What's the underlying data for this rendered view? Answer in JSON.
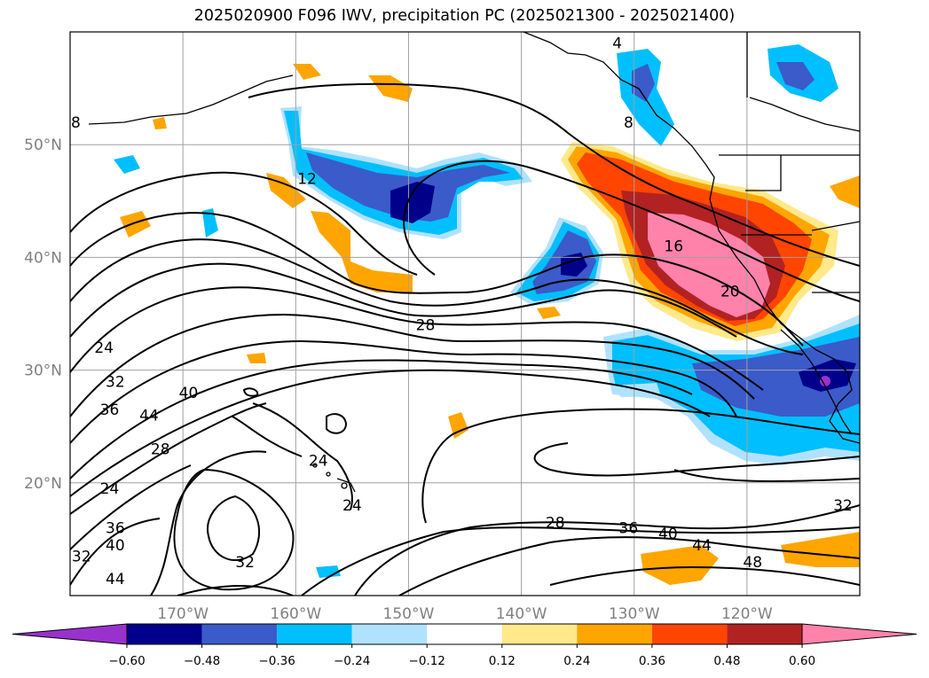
{
  "chart_data": {
    "type": "heatmap",
    "title": "2025020900 F096 IWV, precipitation PC (2025021300 - 2025021400)",
    "map": {
      "lon_range": [
        -180,
        -110
      ],
      "lat_range": [
        10,
        60
      ],
      "lon_ticks": [
        "170°W",
        "160°W",
        "150°W",
        "140°W",
        "130°W",
        "120°W"
      ],
      "lon_tick_values": [
        -170,
        -160,
        -150,
        -140,
        -130,
        -120
      ],
      "lat_ticks": [
        "50°N",
        "40°N",
        "30°N",
        "20°N"
      ],
      "lat_tick_values": [
        50,
        40,
        30,
        20
      ],
      "grid": true
    },
    "colorbar": {
      "tick_labels": [
        "−0.60",
        "−0.48",
        "−0.36",
        "−0.24",
        "−0.12",
        "0.12",
        "0.24",
        "0.36",
        "0.48",
        "0.60"
      ],
      "colors": [
        "#9932cc",
        "#00008b",
        "#3a5bc9",
        "#00bfff",
        "#b0e2ff",
        "#ffffff",
        "#ffe98a",
        "#ffa500",
        "#ff4500",
        "#b22222",
        "#ff82ab"
      ],
      "extend": "both"
    },
    "shaded_field": {
      "name": "precipitation PC",
      "regions": [
        {
          "level": 0.6,
          "lon": -127,
          "lat": 38,
          "note": "pink core off California"
        },
        {
          "level": 0.48,
          "lon": -126,
          "lat": 39
        },
        {
          "level": 0.36,
          "lon": -128,
          "lat": 42
        },
        {
          "level": 0.24,
          "lon": -130,
          "lat": 45
        },
        {
          "level": -0.48,
          "lon": -151,
          "lat": 44.5
        },
        {
          "level": -0.48,
          "lon": -135,
          "lat": 39
        },
        {
          "level": -0.48,
          "lon": -113,
          "lat": 29
        },
        {
          "level": -0.36,
          "lon": -119,
          "lat": 29.5
        },
        {
          "level": -0.24,
          "lon": -125,
          "lat": 31
        },
        {
          "level": -0.36,
          "lon": -125,
          "lat": 57
        },
        {
          "level": -0.36,
          "lon": -115,
          "lat": 56
        },
        {
          "level": 0.24,
          "lon": -154,
          "lat": 40
        },
        {
          "level": 0.24,
          "lon": -145,
          "lat": 25
        },
        {
          "level": 0.24,
          "lon": -125,
          "lat": 14
        },
        {
          "level": 0.24,
          "lon": -113,
          "lat": 14
        }
      ]
    },
    "contour_field": {
      "name": "IWV",
      "labels": [
        {
          "text": "4",
          "lon": -131.5,
          "lat": 59
        },
        {
          "text": "8",
          "lon": -130.5,
          "lat": 52
        },
        {
          "text": "8",
          "lon": -179.5,
          "lat": 52
        },
        {
          "text": "12",
          "lon": -159,
          "lat": 47
        },
        {
          "text": "16",
          "lon": -126.5,
          "lat": 41
        },
        {
          "text": "20",
          "lon": -121.5,
          "lat": 37
        },
        {
          "text": "28",
          "lon": -148.5,
          "lat": 34
        },
        {
          "text": "24",
          "lon": -177,
          "lat": 32
        },
        {
          "text": "32",
          "lon": -176,
          "lat": 29
        },
        {
          "text": "36",
          "lon": -176.5,
          "lat": 26.5
        },
        {
          "text": "44",
          "lon": -173,
          "lat": 26
        },
        {
          "text": "40",
          "lon": -169.5,
          "lat": 28
        },
        {
          "text": "28",
          "lon": -172,
          "lat": 23
        },
        {
          "text": "24",
          "lon": -158,
          "lat": 22
        },
        {
          "text": "24",
          "lon": -176.5,
          "lat": 19.5
        },
        {
          "text": "24",
          "lon": -155,
          "lat": 18
        },
        {
          "text": "36",
          "lon": -176,
          "lat": 16
        },
        {
          "text": "40",
          "lon": -176,
          "lat": 14.5
        },
        {
          "text": "32",
          "lon": -179,
          "lat": 13.5
        },
        {
          "text": "44",
          "lon": -176,
          "lat": 11.5
        },
        {
          "text": "32",
          "lon": -164.5,
          "lat": 13
        },
        {
          "text": "28",
          "lon": -137,
          "lat": 16.5
        },
        {
          "text": "36",
          "lon": -130.5,
          "lat": 16
        },
        {
          "text": "40",
          "lon": -127,
          "lat": 15.5
        },
        {
          "text": "44",
          "lon": -124,
          "lat": 14.5
        },
        {
          "text": "48",
          "lon": -119.5,
          "lat": 13
        },
        {
          "text": "32",
          "lon": -111.5,
          "lat": 18
        }
      ]
    }
  },
  "icons": {
    "coastline": "coastline-icon"
  }
}
